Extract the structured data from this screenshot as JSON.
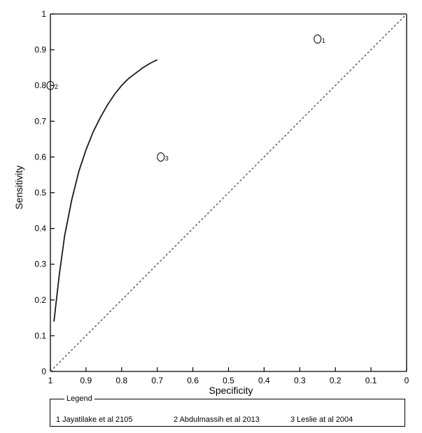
{
  "chart_data": {
    "type": "scatter",
    "xlabel": "Specificity",
    "ylabel": "Sensitivity",
    "xlim": [
      1,
      0
    ],
    "ylim": [
      0,
      1
    ],
    "x_reversed": true,
    "x_ticks": [
      "1",
      "0.9",
      "0.8",
      "0.7",
      "0.6",
      "0.5",
      "0.4",
      "0.3",
      "0.2",
      "0.1",
      "0"
    ],
    "y_ticks": [
      "0",
      "0.1",
      "0.2",
      "0.3",
      "0.4",
      "0.5",
      "0.6",
      "0.7",
      "0.8",
      "0.9",
      "1"
    ],
    "grid": false,
    "points": [
      {
        "label": "1",
        "specificity": 0.25,
        "sensitivity": 0.93
      },
      {
        "label": "2",
        "specificity": 1.0,
        "sensitivity": 0.8
      },
      {
        "label": "3",
        "specificity": 0.69,
        "sensitivity": 0.6
      }
    ],
    "sroc_curve": {
      "specificity": [
        0.99,
        0.975,
        0.96,
        0.94,
        0.92,
        0.9,
        0.88,
        0.86,
        0.84,
        0.82,
        0.8,
        0.78,
        0.76,
        0.74,
        0.72,
        0.7
      ],
      "sensitivity": [
        0.14,
        0.27,
        0.38,
        0.48,
        0.56,
        0.62,
        0.67,
        0.71,
        0.745,
        0.775,
        0.8,
        0.82,
        0.835,
        0.85,
        0.862,
        0.872
      ]
    },
    "reference_line": {
      "type": "diagonal",
      "style": "dashed"
    },
    "legend": {
      "title": "Legend",
      "placement": "bottom",
      "entries": [
        "1 Jayatilake et al 2105",
        "2 Abdulmassih et al 2013",
        "3 Leslie at al 2004"
      ]
    }
  },
  "colors": {
    "axis": "#000000",
    "curve": "#1a1a1a",
    "diagonal": "#555555"
  }
}
